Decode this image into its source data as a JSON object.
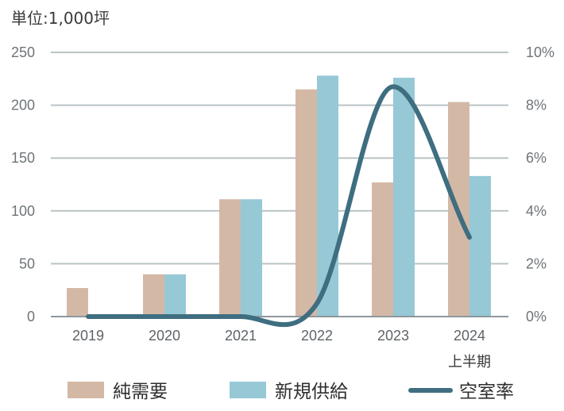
{
  "chart_data": {
    "type": "bar",
    "unit_label": "単位:1,000坪",
    "categories": [
      "2019",
      "2020",
      "2021",
      "2022",
      "2023",
      "2024"
    ],
    "category_sublabels": [
      "",
      "",
      "",
      "",
      "",
      "上半期"
    ],
    "left_axis": {
      "ylim": [
        0,
        250
      ],
      "ticks": [
        "0",
        "50",
        "100",
        "150",
        "200",
        "250"
      ]
    },
    "right_axis": {
      "ylim": [
        0,
        10
      ],
      "ticks": [
        "0%",
        "2%",
        "4%",
        "6%",
        "8%",
        "10%"
      ]
    },
    "grid": true,
    "legend_position": "bottom",
    "series": [
      {
        "name": "純需要",
        "kind": "bar",
        "axis": "left",
        "color": "#d4b8a6",
        "values": [
          27,
          40,
          111,
          215,
          127,
          203
        ]
      },
      {
        "name": "新規供給",
        "kind": "bar",
        "axis": "left",
        "color": "#96c8d6",
        "values": [
          0,
          40,
          111,
          228,
          226,
          133
        ]
      },
      {
        "name": "空室率",
        "kind": "line",
        "axis": "right",
        "color": "#3e6e80",
        "values": [
          0,
          0,
          0,
          0.5,
          8.7,
          3.0
        ]
      }
    ]
  }
}
